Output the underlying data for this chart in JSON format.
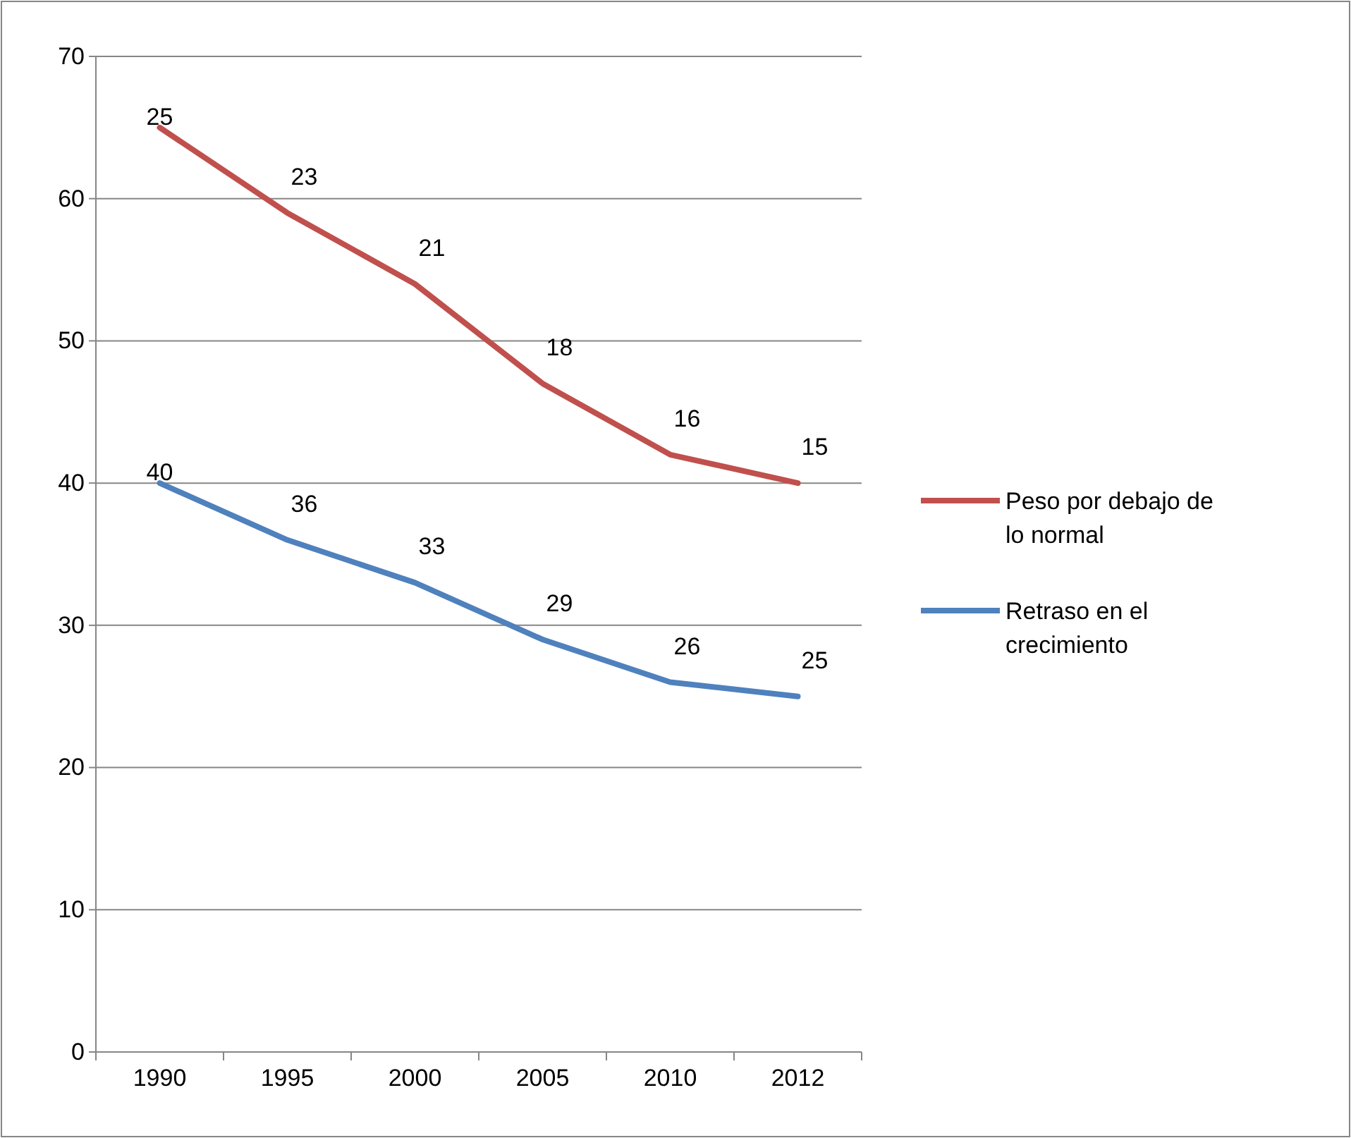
{
  "chart_data": {
    "type": "line",
    "categories": [
      "1990",
      "1995",
      "2000",
      "2005",
      "2010",
      "2012"
    ],
    "series": [
      {
        "name": "Peso por debajo de lo normal",
        "color": "#c0504d",
        "values": [
          65,
          59,
          54,
          47,
          42,
          40
        ]
      },
      {
        "name": "Retraso en el crecimiento",
        "color": "#4f81bd",
        "values": [
          40,
          36,
          33,
          29,
          26,
          25
        ],
        "value_labels": [
          "40",
          "36",
          "33",
          "29",
          "26",
          "25"
        ]
      }
    ],
    "annotations": [
      {
        "text": "25",
        "x": "1990",
        "y": 65
      },
      {
        "text": "23",
        "x": "1995",
        "y": 59
      },
      {
        "text": "21",
        "x": "2000",
        "y": 54
      },
      {
        "text": "18",
        "x": "2005",
        "y": 47
      },
      {
        "text": "16",
        "x": "2010",
        "y": 42
      },
      {
        "text": "15",
        "x": "2012",
        "y": 40
      }
    ],
    "ylim": [
      0,
      70
    ],
    "yticks": [
      0,
      10,
      20,
      30,
      40,
      50,
      60,
      70
    ],
    "grid": "y",
    "legend": "right",
    "marker": "none",
    "line_style": "solid"
  }
}
